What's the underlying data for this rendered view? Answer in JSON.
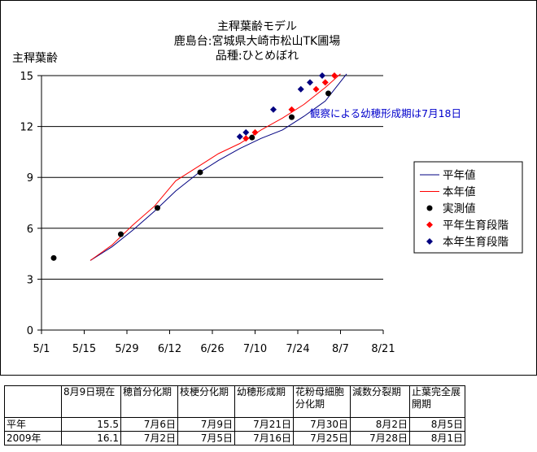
{
  "chart_data": {
    "type": "line",
    "title_lines": [
      "主稈葉齢モデル",
      "鹿島台:宮城県大崎市松山TK圃場",
      "品種:ひとめぼれ"
    ],
    "ylabel": "主稈葉齢",
    "xlabel": "",
    "x_ticks": [
      "5/1",
      "5/15",
      "5/29",
      "6/12",
      "6/26",
      "7/10",
      "7/24",
      "8/7",
      "8/21"
    ],
    "xlim": [
      "5/1",
      "8/21"
    ],
    "ylim": [
      0,
      15
    ],
    "y_ticks": [
      0,
      3,
      6,
      9,
      12,
      15
    ],
    "grid": "horizontal",
    "legend_position": "right",
    "annotation": "観察による幼穂形成期は7月18日",
    "series": [
      {
        "name": "平年値",
        "kind": "line",
        "color": "#000080",
        "points": [
          [
            "5/17",
            4.1
          ],
          [
            "5/24",
            4.9
          ],
          [
            "5/31",
            5.9
          ],
          [
            "6/7",
            7.0
          ],
          [
            "6/14",
            8.2
          ],
          [
            "6/21",
            9.2
          ],
          [
            "6/28",
            10.0
          ],
          [
            "7/5",
            10.7
          ],
          [
            "7/12",
            11.3
          ],
          [
            "7/19",
            11.8
          ],
          [
            "7/26",
            12.6
          ],
          [
            "8/2",
            13.5
          ],
          [
            "8/9",
            15.1
          ]
        ]
      },
      {
        "name": "本年値",
        "kind": "line",
        "color": "#ff0000",
        "points": [
          [
            "5/17",
            4.1
          ],
          [
            "5/24",
            5.0
          ],
          [
            "5/31",
            6.2
          ],
          [
            "6/7",
            7.3
          ],
          [
            "6/14",
            8.8
          ],
          [
            "6/21",
            9.6
          ],
          [
            "6/28",
            10.4
          ],
          [
            "7/5",
            11.0
          ],
          [
            "7/12",
            11.8
          ],
          [
            "7/19",
            12.5
          ],
          [
            "7/26",
            13.3
          ],
          [
            "8/2",
            14.3
          ],
          [
            "8/7",
            15.1
          ]
        ]
      },
      {
        "name": "実測値",
        "kind": "marker",
        "marker": "circle",
        "color": "#000000",
        "points": [
          [
            "5/5",
            4.25
          ],
          [
            "5/27",
            5.65
          ],
          [
            "6/8",
            7.2
          ],
          [
            "6/22",
            9.3
          ],
          [
            "7/9",
            11.35
          ],
          [
            "7/22",
            12.55
          ],
          [
            "8/3",
            13.95
          ]
        ]
      },
      {
        "name": "平年生育段階",
        "kind": "marker",
        "marker": "diamond",
        "color": "#ff0000",
        "points": [
          [
            "7/7",
            11.3
          ],
          [
            "7/10",
            11.65
          ],
          [
            "7/22",
            13.0
          ],
          [
            "7/30",
            14.2
          ],
          [
            "8/2",
            14.6
          ],
          [
            "8/5",
            15.0
          ]
        ]
      },
      {
        "name": "本年生育段階",
        "kind": "marker",
        "marker": "diamond",
        "color": "#000080",
        "points": [
          [
            "7/5",
            11.4
          ],
          [
            "7/7",
            11.65
          ],
          [
            "7/16",
            13.0
          ],
          [
            "7/25",
            14.2
          ],
          [
            "7/28",
            14.6
          ],
          [
            "8/1",
            15.0
          ]
        ]
      }
    ]
  },
  "table": {
    "headers": [
      "",
      "8月9日現在",
      "穂首分化期",
      "枝梗分化期",
      "幼穂形成期",
      "花粉母細胞分化期",
      "減数分裂期",
      "止葉完全展開期"
    ],
    "rows": [
      [
        "平年",
        "15.5",
        "7月6日",
        "7月9日",
        "7月21日",
        "7月30日",
        "8月2日",
        "8月5日"
      ],
      [
        "2009年",
        "16.1",
        "7月2日",
        "7月5日",
        "7月16日",
        "7月25日",
        "7月28日",
        "8月1日"
      ]
    ]
  }
}
